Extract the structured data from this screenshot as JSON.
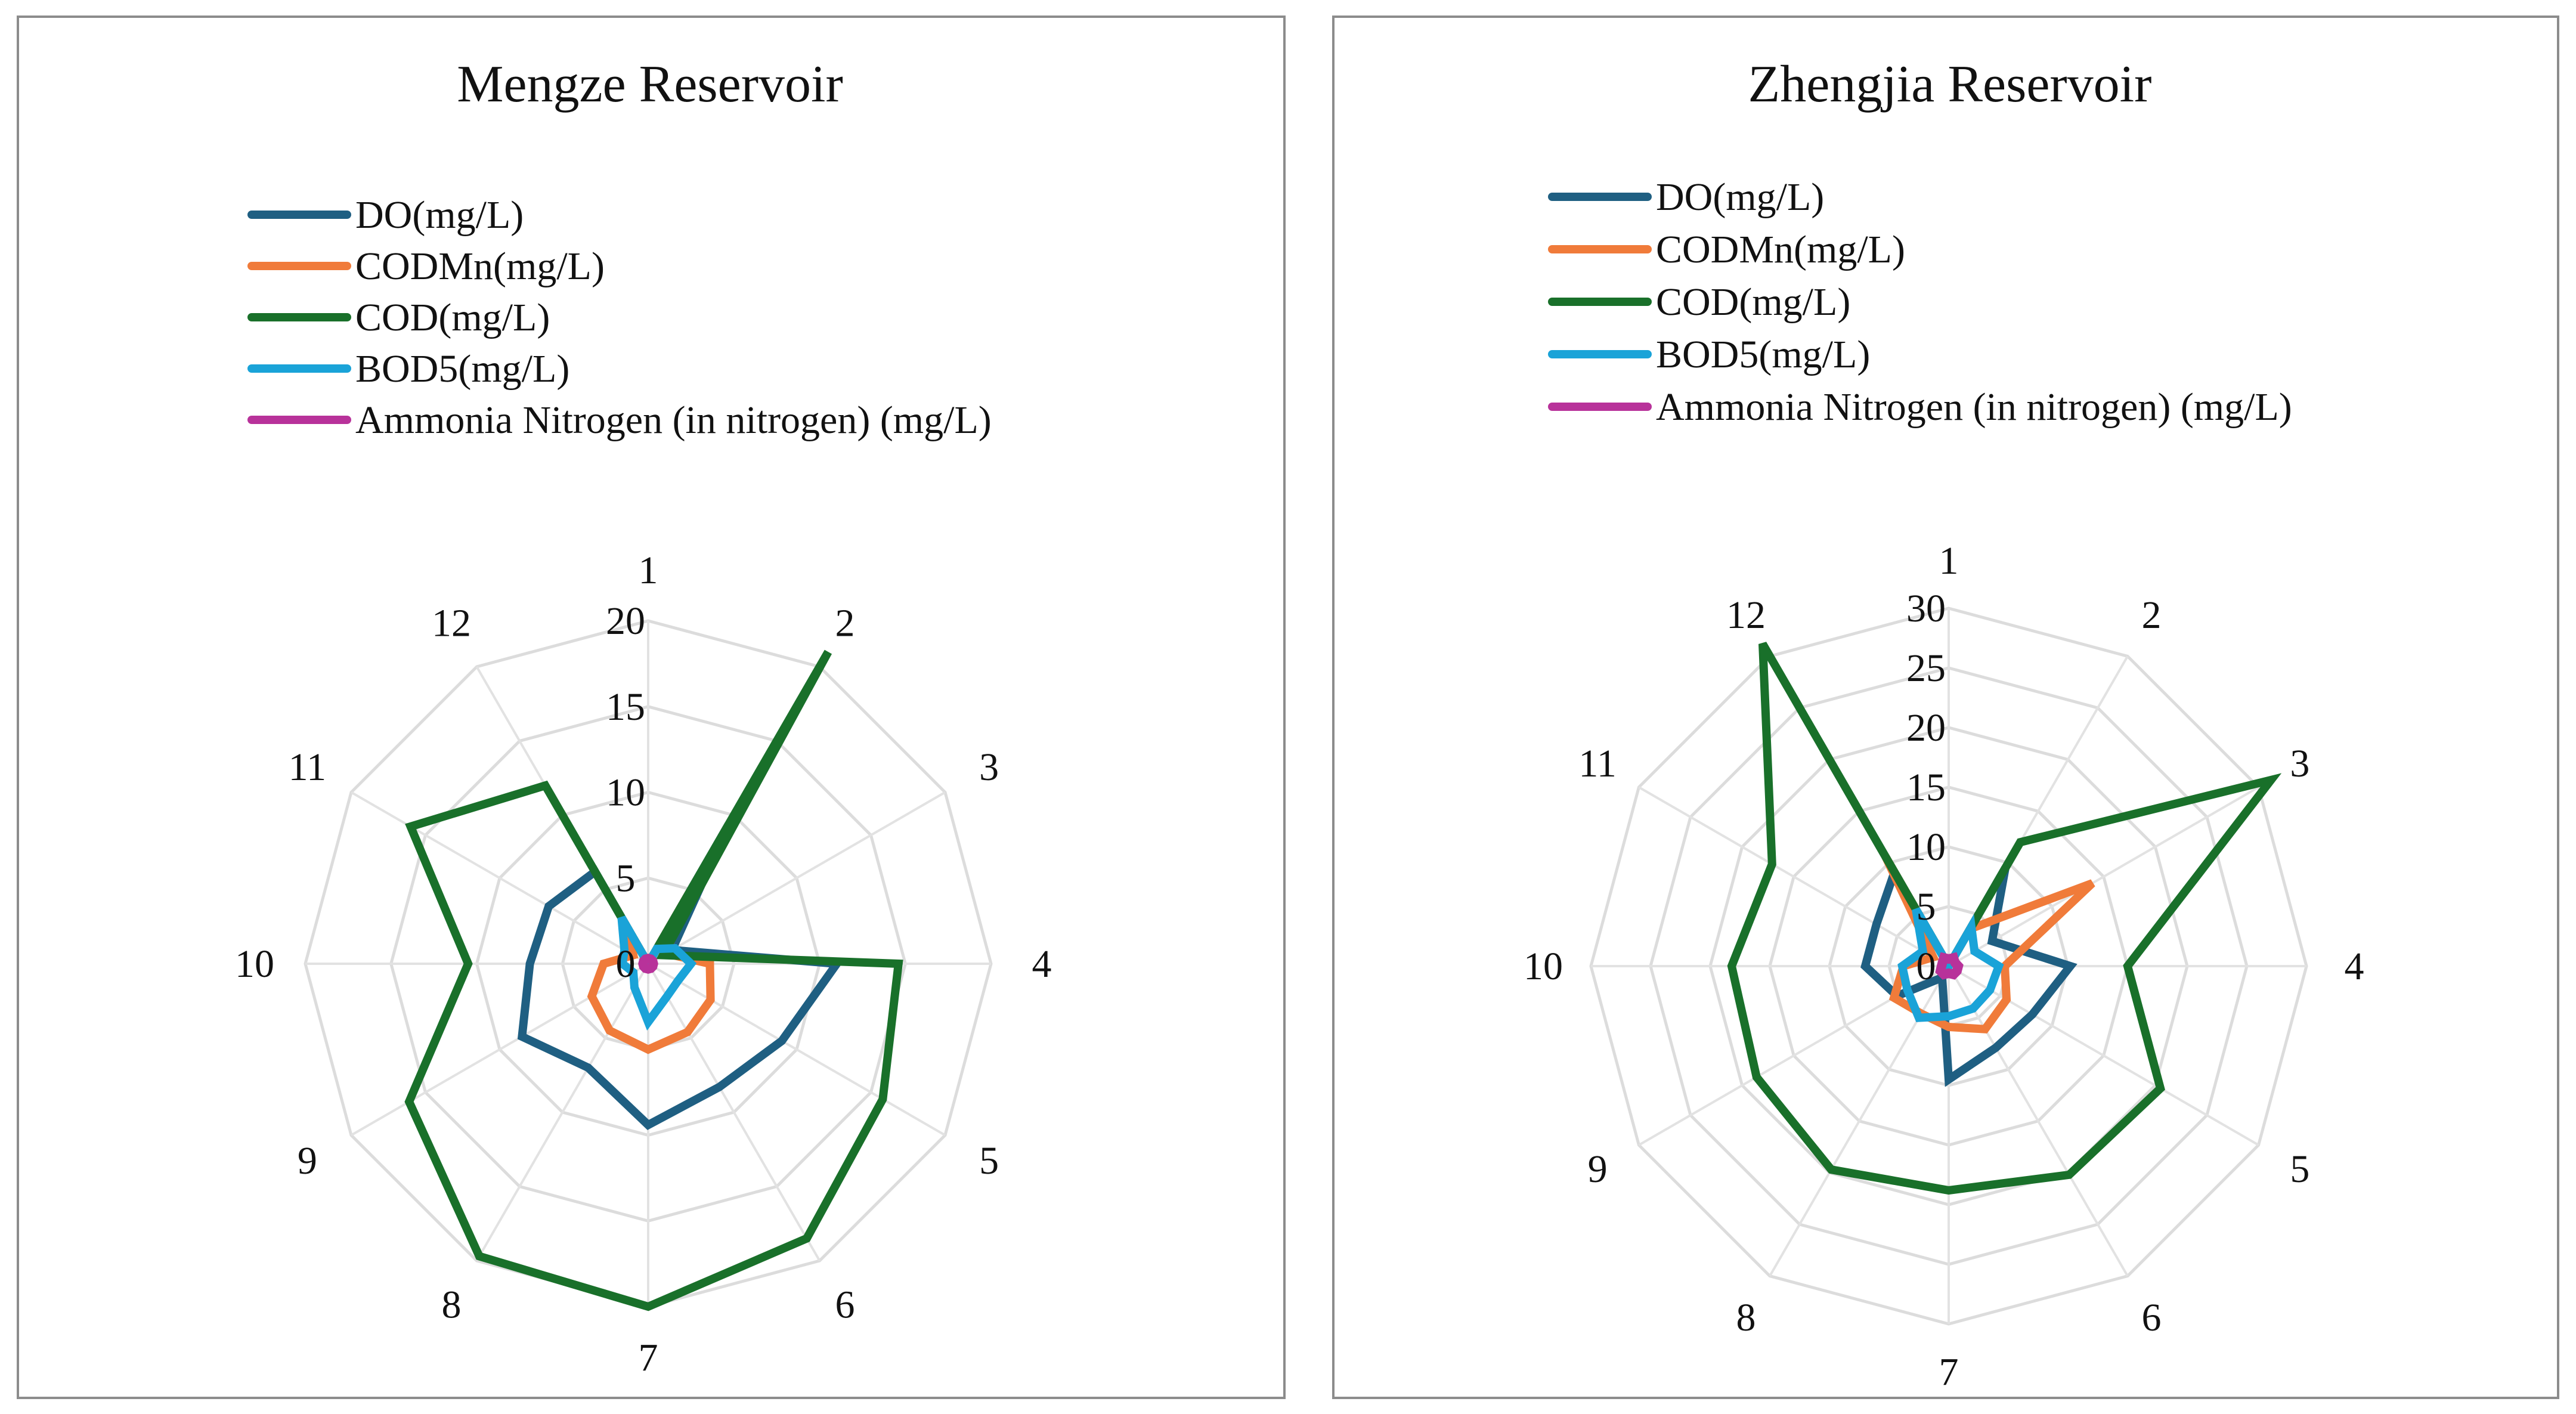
{
  "chart_data": [
    {
      "type": "radar",
      "title": "Mengze Reservoir",
      "categories": [
        "1",
        "2",
        "3",
        "4",
        "5",
        "6",
        "7",
        "8",
        "9",
        "10",
        "11",
        "12"
      ],
      "rlim": [
        0,
        20
      ],
      "rticks": [
        "0",
        "5",
        "10",
        "15",
        "20"
      ],
      "series": [
        {
          "name": "DO(mg/L)",
          "color": "#1f5f82",
          "values": [
            0,
            9.4,
            1.6,
            11.0,
            9.0,
            8.3,
            9.4,
            7.0,
            8.5,
            6.9,
            6.7,
            6.2
          ]
        },
        {
          "name": "CODMn(mg/L)",
          "color": "#f07b3a",
          "values": [
            0,
            4.8,
            1.2,
            3.6,
            4.2,
            4.6,
            5.0,
            4.5,
            3.8,
            2.6,
            1.0,
            2.4
          ]
        },
        {
          "name": "COD(mg/L)",
          "color": "#19702a",
          "values": [
            0,
            21.0,
            1.0,
            14.6,
            15.8,
            18.5,
            20.0,
            19.7,
            16.1,
            10.5,
            16.0,
            12.0
          ]
        },
        {
          "name": "BOD5(mg/L)",
          "color": "#1aa3d8",
          "values": [
            0,
            1.0,
            1.8,
            2.5,
            2.0,
            2.2,
            3.4,
            1.6,
            1.0,
            1.5,
            1.6,
            3.1
          ]
        },
        {
          "name": "Ammonia Nitrogen (in nitrogen)  (mg/L)",
          "color": "#b8329a",
          "values": [
            0.3,
            0.3,
            0.3,
            0.3,
            0.3,
            0.3,
            0.3,
            0.3,
            0.3,
            0.3,
            0.3,
            0.3
          ]
        }
      ]
    },
    {
      "type": "radar",
      "title": "Zhengjia Reservoir",
      "categories": [
        "1",
        "2",
        "3",
        "4",
        "5",
        "6",
        "7",
        "8",
        "9",
        "10",
        "11",
        "12"
      ],
      "rlim": [
        0,
        30
      ],
      "rticks": [
        "0",
        "5",
        "10",
        "15",
        "20",
        "25",
        "30"
      ],
      "series": [
        {
          "name": "DO(mg/L)",
          "color": "#1f5f82",
          "values": [
            0,
            9.5,
            4.2,
            10.2,
            8.1,
            7.9,
            9.5,
            1.1,
            5.0,
            7.0,
            7.0,
            9.1
          ]
        },
        {
          "name": "CODMn(mg/L)",
          "color": "#f07b3a",
          "values": [
            0,
            3.6,
            13.9,
            4.7,
            5.6,
            6.1,
            5.1,
            4.6,
            5.3,
            3.8,
            1.5,
            10.6
          ]
        },
        {
          "name": "COD(mg/L)",
          "color": "#19702a",
          "values": [
            0,
            12.0,
            31.2,
            15.0,
            20.5,
            20.2,
            18.8,
            19.7,
            18.6,
            18.2,
            17.1,
            31.2
          ]
        },
        {
          "name": "BOD5(mg/L)",
          "color": "#1aa3d8",
          "values": [
            0,
            3.8,
            2.5,
            4.2,
            4.0,
            4.1,
            4.2,
            5.0,
            4.0,
            3.9,
            2.5,
            5.5
          ]
        },
        {
          "name": "Ammonia Nitrogen (in nitrogen)  (mg/L)",
          "color": "#b8329a",
          "values": [
            0.6,
            0.8,
            0.6,
            0.8,
            0.8,
            0.8,
            0.6,
            0.8,
            0.8,
            0.6,
            0.6,
            0.8
          ]
        }
      ]
    }
  ]
}
